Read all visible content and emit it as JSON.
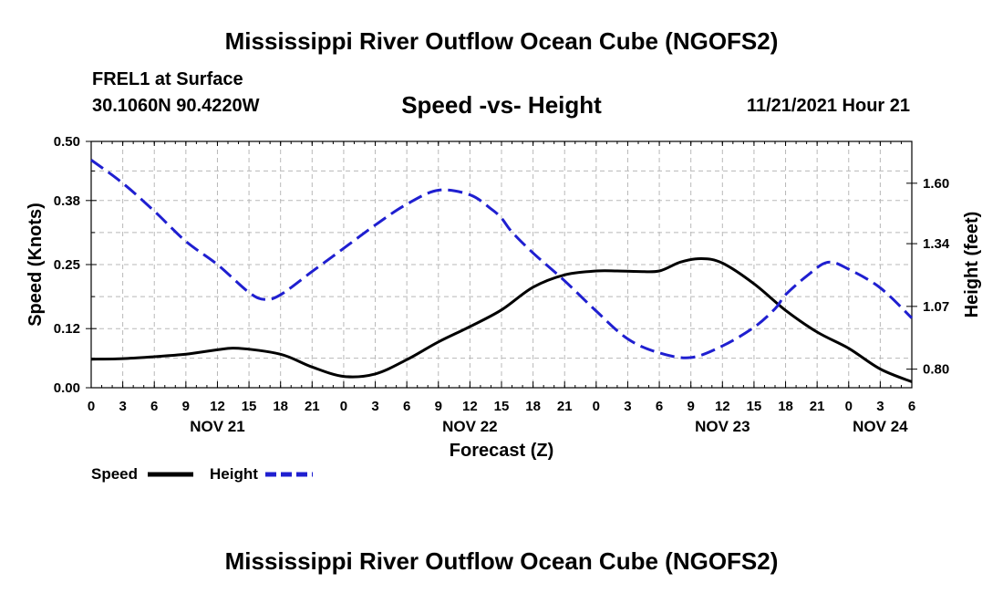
{
  "header": {
    "title": "Mississippi River Outflow Ocean Cube (NGOFS2)",
    "station": "FREL1 at Surface",
    "coordinates": "30.1060N  90.4220W",
    "subtitle": "Speed -vs- Height",
    "datetime": "11/21/2021 Hour 21"
  },
  "footer": {
    "title": "Mississippi River Outflow Ocean Cube (NGOFS2)"
  },
  "colors": {
    "speed": "#000000",
    "height": "#1f1fd0",
    "grid": "#b8b8b8"
  },
  "chart_data": {
    "type": "line",
    "title": "Speed -vs- Height",
    "xlabel": "Forecast (Z)",
    "ylabel": "Speed (Knots)",
    "y2label": "Height (feet)",
    "xlim": [
      0,
      78
    ],
    "ylim": [
      0,
      0.5
    ],
    "y2lim": [
      0.72,
      1.78
    ],
    "x_ticks": [
      0,
      3,
      6,
      9,
      12,
      15,
      18,
      21,
      24,
      27,
      30,
      33,
      36,
      39,
      42,
      45,
      48,
      51,
      54,
      57,
      60,
      63,
      66,
      69,
      72,
      75,
      78
    ],
    "x_tick_labels": [
      "0",
      "3",
      "6",
      "9",
      "12",
      "15",
      "18",
      "21",
      "0",
      "3",
      "6",
      "9",
      "12",
      "15",
      "18",
      "21",
      "0",
      "3",
      "6",
      "9",
      "12",
      "15",
      "18",
      "21",
      "0",
      "3",
      "6"
    ],
    "date_labels": [
      {
        "x": 12,
        "label": "NOV 21"
      },
      {
        "x": 36,
        "label": "NOV 22"
      },
      {
        "x": 60,
        "label": "NOV 23"
      },
      {
        "x": 75,
        "label": "NOV 24"
      }
    ],
    "y_ticks": [
      0,
      0.12,
      0.25,
      0.38,
      0.5
    ],
    "y_tick_labels": [
      "0.00",
      "0.12",
      "0.25",
      "0.38",
      "0.50"
    ],
    "y2_ticks": [
      0.8,
      1.07,
      1.34,
      1.6
    ],
    "y2_tick_labels": [
      "0.80",
      "1.07",
      "1.34",
      "1.60"
    ],
    "grid": true,
    "legend": [
      "Speed",
      "Height"
    ],
    "series": [
      {
        "name": "Speed",
        "axis": "left",
        "style": "solid",
        "x": [
          0,
          3,
          6,
          9,
          12,
          14,
          18,
          21,
          24,
          27,
          30,
          33,
          36,
          39,
          42,
          45,
          48,
          50,
          52,
          54,
          56,
          58,
          60,
          63,
          66,
          69,
          72,
          75,
          78
        ],
        "values": [
          0.058,
          0.059,
          0.063,
          0.068,
          0.077,
          0.08,
          0.068,
          0.042,
          0.023,
          0.028,
          0.057,
          0.093,
          0.124,
          0.158,
          0.204,
          0.229,
          0.237,
          0.237,
          0.236,
          0.237,
          0.255,
          0.262,
          0.253,
          0.211,
          0.157,
          0.113,
          0.08,
          0.038,
          0.012
        ]
      },
      {
        "name": "Height",
        "axis": "right",
        "style": "dashed",
        "x": [
          0,
          3,
          6,
          9,
          12,
          15,
          16.5,
          18,
          21,
          24,
          27,
          30,
          33,
          36,
          38,
          39,
          40,
          42,
          45,
          48,
          51,
          54,
          57,
          60,
          63,
          65,
          66,
          68,
          70,
          72,
          75,
          78
        ],
        "values": [
          1.7,
          1.6,
          1.48,
          1.35,
          1.25,
          1.13,
          1.1,
          1.12,
          1.22,
          1.32,
          1.42,
          1.51,
          1.57,
          1.55,
          1.49,
          1.45,
          1.39,
          1.3,
          1.18,
          1.05,
          0.93,
          0.87,
          0.85,
          0.9,
          0.98,
          1.06,
          1.12,
          1.2,
          1.26,
          1.23,
          1.15,
          1.02
        ]
      }
    ]
  }
}
